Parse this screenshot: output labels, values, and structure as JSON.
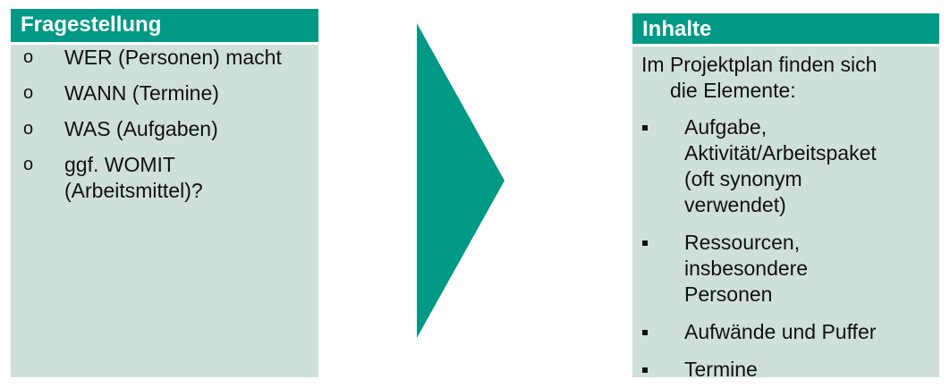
{
  "left_panel": {
    "title": "Fragestellung",
    "bullet_marker": "o",
    "items": [
      "WER (Personen) macht",
      "WANN (Termine)",
      "WAS (Aufgaben)",
      "ggf. WOMIT (Arbeitsmittel)?"
    ]
  },
  "right_panel": {
    "title": "Inhalte",
    "intro_line1": "Im Projektplan finden sich",
    "intro_line2": "die Elemente:",
    "items": [
      "Aufgabe, Aktivität/Arbeitspaket (oft synonym verwendet)",
      "Ressourcen, insbesondere Personen",
      "Aufwände und Puffer",
      "Termine"
    ]
  },
  "colors": {
    "header": "#009985",
    "panel_bg": "#cfdfd9",
    "arrow": "#009985"
  }
}
